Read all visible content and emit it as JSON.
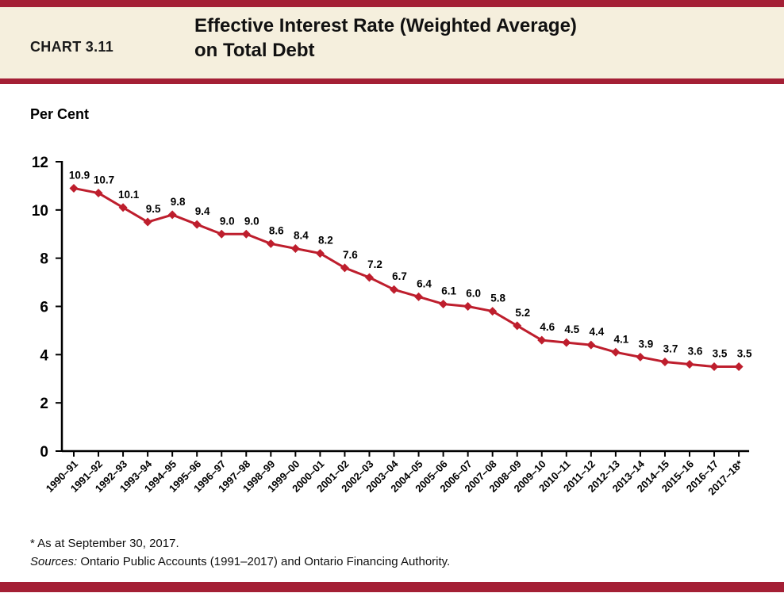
{
  "header": {
    "chart_label": "CHART 3.11",
    "title_line1": "Effective Interest Rate (Weighted Average)",
    "title_line2": "on Total Debt"
  },
  "chart_data": {
    "type": "line",
    "title": "Effective Interest Rate (Weighted Average) on Total Debt",
    "ylabel": "Per Cent",
    "xlabel": "",
    "ylim": [
      0,
      12
    ],
    "ytick_step": 2,
    "yticks": [
      0,
      2,
      4,
      6,
      8,
      10,
      12
    ],
    "grid": false,
    "legend_position": "none",
    "marker": "diamond",
    "series_color": "#be1e2d",
    "categories": [
      "1990–91",
      "1991–92",
      "1992–93",
      "1993–94",
      "1994–95",
      "1995–96",
      "1996–97",
      "1997–98",
      "1998–99",
      "1999–00",
      "2000–01",
      "2001–02",
      "2002–03",
      "2003–04",
      "2004–05",
      "2005–06",
      "2006–07",
      "2007–08",
      "2008–09",
      "2009–10",
      "2010–11",
      "2011–12",
      "2012–13",
      "2013–14",
      "2014–15",
      "2015–16",
      "2016–17",
      "2017–18*"
    ],
    "values": [
      10.9,
      10.7,
      10.1,
      9.5,
      9.8,
      9.4,
      9.0,
      9.0,
      8.6,
      8.4,
      8.2,
      7.6,
      7.2,
      6.7,
      6.4,
      6.1,
      6.0,
      5.8,
      5.2,
      4.6,
      4.5,
      4.4,
      4.1,
      3.9,
      3.7,
      3.6,
      3.5,
      3.5
    ]
  },
  "footnotes": {
    "note1": "* As at September 30, 2017.",
    "sources_label": "Sources:",
    "sources_text": " Ontario Public Accounts (1991–2017) and Ontario Financing Authority."
  },
  "colors": {
    "band_red": "#a41f35",
    "header_cream": "#f5efdd",
    "line_red": "#be1e2d"
  }
}
